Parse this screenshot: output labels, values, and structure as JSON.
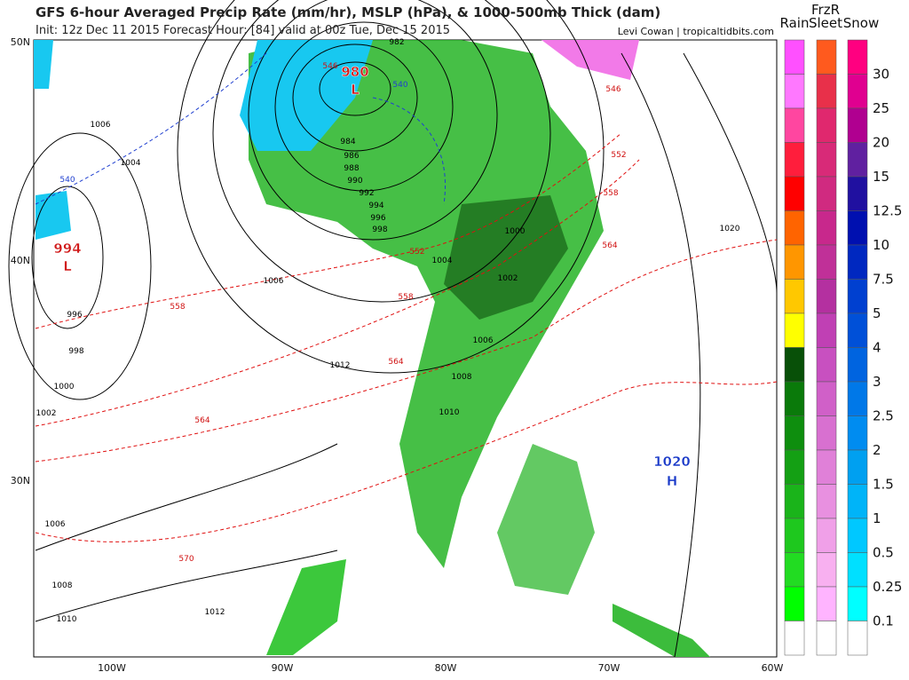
{
  "header": {
    "title": "GFS 6-hour Averaged Precip Rate (mm/hr), MSLP (hPa), & 1000-500mb Thick (dam)",
    "init": "Init: 12z Dec 11 2015   Forecast Hour: [84]   valid at 00z Tue, Dec 15 2015",
    "credit": "Levi Cowan | tropicaltidbits.com"
  },
  "axes": {
    "lat_labels": [
      "50N",
      "40N",
      "30N"
    ],
    "lon_labels": [
      "100W",
      "90W",
      "80W",
      "70W",
      "60W"
    ]
  },
  "legend": {
    "headings": [
      "Rain",
      "FrzR",
      "Sleet",
      "Snow"
    ],
    "scale": [
      "30",
      "25",
      "20",
      "15",
      "12.5",
      "10",
      "7.5",
      "5",
      "4",
      "3",
      "2.5",
      "2",
      "1.5",
      "1",
      "0.5",
      "0.25",
      "0.1"
    ]
  },
  "map_labels": [
    "1006",
    "1004",
    "540",
    "994",
    "L",
    "996",
    "998",
    "1000",
    "1002",
    "1006",
    "1008",
    "1010",
    "1012",
    "570",
    "564",
    "558",
    "1006",
    "1012",
    "982",
    "546",
    "980",
    "L",
    "540",
    "984",
    "986",
    "988",
    "990",
    "992",
    "994",
    "996",
    "998",
    "552",
    "1004",
    "558",
    "1000",
    "1002",
    "1006",
    "1008",
    "1010",
    "564",
    "552",
    "558",
    "564",
    "546",
    "1020",
    "1020",
    "H"
  ]
}
